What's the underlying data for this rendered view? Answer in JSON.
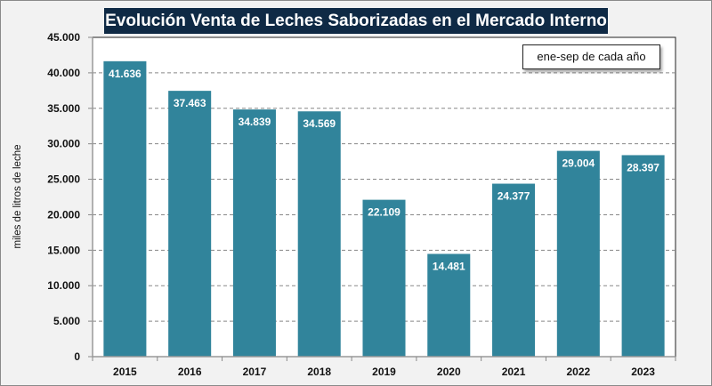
{
  "chart_data": {
    "type": "bar",
    "title": "Evolución Venta de Leches Saborizadas en el Mercado Interno",
    "annotation": "ene-sep de cada año",
    "xlabel": "",
    "ylabel": "miles de litros de leche",
    "categories": [
      "2015",
      "2016",
      "2017",
      "2018",
      "2019",
      "2020",
      "2021",
      "2022",
      "2023"
    ],
    "values": [
      41636,
      37463,
      34839,
      34569,
      22109,
      14481,
      24377,
      29004,
      28397
    ],
    "data_labels": [
      "41.636",
      "37.463",
      "34.839",
      "34.569",
      "22.109",
      "14.481",
      "24.377",
      "29.004",
      "28.397"
    ],
    "ylim": [
      0,
      45000
    ],
    "yticks": [
      0,
      5000,
      10000,
      15000,
      20000,
      25000,
      30000,
      35000,
      40000,
      45000
    ],
    "ytick_labels": [
      "0",
      "5.000",
      "10.000",
      "15.000",
      "20.000",
      "25.000",
      "30.000",
      "35.000",
      "40.000",
      "45.000"
    ],
    "grid": "horizontal dashed",
    "legend": "none",
    "bar_color": "#31849b"
  }
}
